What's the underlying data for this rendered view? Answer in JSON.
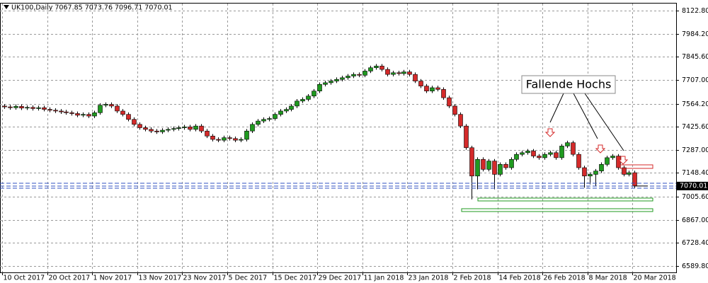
{
  "chart_data": {
    "type": "candlestick",
    "title": "UK100,Daily  7067.85 7073.76 7096.71 7070.01",
    "annotation": "Fallende Hochs",
    "current_price": {
      "value": 7070.01,
      "label": "7070.01"
    },
    "up_color": "#1f9a1f",
    "down_color": "#d42a2a",
    "grid": true,
    "ylim": [
      6551.6,
      8165.3
    ],
    "yticks": [
      {
        "value": 8122.8,
        "label": "8122.80"
      },
      {
        "value": 7984.2,
        "label": "7984.20"
      },
      {
        "value": 7845.6,
        "label": "7845.60"
      },
      {
        "value": 7707.0,
        "label": "7707.00"
      },
      {
        "value": 7564.2,
        "label": "7564.20"
      },
      {
        "value": 7425.6,
        "label": "7425.60"
      },
      {
        "value": 7287.0,
        "label": "7287.00"
      },
      {
        "value": 7148.4,
        "label": "7148.40"
      },
      {
        "value": 7005.6,
        "label": "7005.60"
      },
      {
        "value": 6867.0,
        "label": "6867.00"
      },
      {
        "value": 6728.4,
        "label": "6728.40"
      },
      {
        "value": 6589.8,
        "label": "6589.80"
      }
    ],
    "categories": [
      "10 Oct 2017",
      null,
      null,
      null,
      null,
      null,
      null,
      null,
      "20 Oct 2017",
      null,
      null,
      null,
      null,
      null,
      null,
      null,
      "1 Nov 2017",
      null,
      null,
      null,
      null,
      null,
      null,
      null,
      "13 Nov 2017",
      null,
      null,
      null,
      null,
      null,
      null,
      null,
      "23 Nov 2017",
      null,
      null,
      null,
      null,
      null,
      null,
      null,
      "5 Dec 2017",
      null,
      null,
      null,
      null,
      null,
      null,
      null,
      "15 Dec 2017",
      null,
      null,
      null,
      null,
      null,
      null,
      null,
      "29 Dec 2017",
      null,
      null,
      null,
      null,
      null,
      null,
      null,
      "11 Jan 2018",
      null,
      null,
      null,
      null,
      null,
      null,
      null,
      "23 Jan 2018",
      null,
      null,
      null,
      null,
      null,
      null,
      null,
      "2 Feb 2018",
      null,
      null,
      null,
      null,
      null,
      null,
      null,
      "14 Feb 2018",
      null,
      null,
      null,
      null,
      null,
      null,
      null,
      "26 Feb 2018",
      null,
      null,
      null,
      null,
      null,
      null,
      null,
      "8 Mar 2018",
      null,
      null,
      null,
      null,
      null,
      null,
      null,
      "20 Mar 2018"
    ],
    "candles": [
      [
        7550,
        7562,
        7533,
        7545
      ],
      [
        7545,
        7557,
        7528,
        7540
      ],
      [
        7540,
        7560,
        7528,
        7548
      ],
      [
        7548,
        7560,
        7526,
        7538
      ],
      [
        7538,
        7554,
        7526,
        7542
      ],
      [
        7542,
        7554,
        7523,
        7535
      ],
      [
        7535,
        7552,
        7523,
        7540
      ],
      [
        7540,
        7552,
        7518,
        7530
      ],
      [
        7530,
        7542,
        7513,
        7525
      ],
      [
        7525,
        7537,
        7508,
        7520
      ],
      [
        7520,
        7532,
        7503,
        7515
      ],
      [
        7515,
        7527,
        7498,
        7510
      ],
      [
        7510,
        7522,
        7493,
        7505
      ],
      [
        7505,
        7517,
        7483,
        7495
      ],
      [
        7495,
        7512,
        7483,
        7500
      ],
      [
        7500,
        7512,
        7478,
        7490
      ],
      [
        7490,
        7522,
        7478,
        7510
      ],
      [
        7510,
        7567,
        7498,
        7555
      ],
      [
        7555,
        7572,
        7543,
        7560
      ],
      [
        7560,
        7572,
        7538,
        7550
      ],
      [
        7550,
        7562,
        7508,
        7520
      ],
      [
        7520,
        7532,
        7488,
        7500
      ],
      [
        7500,
        7512,
        7458,
        7470
      ],
      [
        7470,
        7482,
        7428,
        7440
      ],
      [
        7440,
        7452,
        7408,
        7420
      ],
      [
        7420,
        7432,
        7398,
        7410
      ],
      [
        7410,
        7422,
        7388,
        7400
      ],
      [
        7400,
        7412,
        7383,
        7395
      ],
      [
        7395,
        7417,
        7383,
        7405
      ],
      [
        7405,
        7422,
        7393,
        7410
      ],
      [
        7410,
        7427,
        7398,
        7415
      ],
      [
        7415,
        7432,
        7403,
        7420
      ],
      [
        7420,
        7437,
        7408,
        7425
      ],
      [
        7425,
        7437,
        7398,
        7410
      ],
      [
        7410,
        7442,
        7398,
        7430
      ],
      [
        7430,
        7442,
        7388,
        7400
      ],
      [
        7400,
        7412,
        7358,
        7370
      ],
      [
        7370,
        7382,
        7338,
        7350
      ],
      [
        7350,
        7362,
        7333,
        7345
      ],
      [
        7345,
        7372,
        7333,
        7360
      ],
      [
        7360,
        7372,
        7343,
        7355
      ],
      [
        7355,
        7367,
        7333,
        7345
      ],
      [
        7345,
        7362,
        7333,
        7350
      ],
      [
        7350,
        7412,
        7338,
        7400
      ],
      [
        7400,
        7452,
        7388,
        7440
      ],
      [
        7440,
        7472,
        7428,
        7460
      ],
      [
        7460,
        7482,
        7448,
        7470
      ],
      [
        7470,
        7487,
        7458,
        7475
      ],
      [
        7475,
        7512,
        7463,
        7500
      ],
      [
        7500,
        7532,
        7488,
        7520
      ],
      [
        7520,
        7542,
        7508,
        7530
      ],
      [
        7530,
        7562,
        7518,
        7550
      ],
      [
        7550,
        7592,
        7538,
        7580
      ],
      [
        7580,
        7602,
        7568,
        7590
      ],
      [
        7590,
        7622,
        7578,
        7610
      ],
      [
        7610,
        7652,
        7598,
        7640
      ],
      [
        7640,
        7692,
        7628,
        7680
      ],
      [
        7680,
        7702,
        7668,
        7690
      ],
      [
        7690,
        7712,
        7678,
        7700
      ],
      [
        7700,
        7722,
        7688,
        7710
      ],
      [
        7710,
        7732,
        7698,
        7720
      ],
      [
        7720,
        7742,
        7708,
        7730
      ],
      [
        7730,
        7752,
        7718,
        7740
      ],
      [
        7740,
        7752,
        7723,
        7735
      ],
      [
        7735,
        7772,
        7723,
        7760
      ],
      [
        7760,
        7792,
        7748,
        7780
      ],
      [
        7780,
        7802,
        7768,
        7790
      ],
      [
        7790,
        7802,
        7758,
        7770
      ],
      [
        7770,
        7782,
        7728,
        7740
      ],
      [
        7740,
        7762,
        7728,
        7750
      ],
      [
        7750,
        7762,
        7733,
        7745
      ],
      [
        7745,
        7767,
        7733,
        7755
      ],
      [
        7755,
        7767,
        7728,
        7740
      ],
      [
        7740,
        7752,
        7688,
        7700
      ],
      [
        7700,
        7712,
        7658,
        7670
      ],
      [
        7670,
        7682,
        7628,
        7640
      ],
      [
        7640,
        7672,
        7628,
        7660
      ],
      [
        7660,
        7672,
        7638,
        7650
      ],
      [
        7650,
        7662,
        7588,
        7600
      ],
      [
        7600,
        7612,
        7538,
        7550
      ],
      [
        7550,
        7562,
        7488,
        7500
      ],
      [
        7500,
        7512,
        7418,
        7430
      ],
      [
        7430,
        7442,
        7288,
        7300
      ],
      [
        7300,
        7312,
        6990,
        7130
      ],
      [
        7130,
        7242,
        7050,
        7230
      ],
      [
        7230,
        7242,
        7158,
        7170
      ],
      [
        7170,
        7232,
        7158,
        7220
      ],
      [
        7220,
        7232,
        7050,
        7140
      ],
      [
        7140,
        7212,
        7128,
        7200
      ],
      [
        7200,
        7212,
        7168,
        7180
      ],
      [
        7180,
        7242,
        7168,
        7230
      ],
      [
        7230,
        7272,
        7218,
        7260
      ],
      [
        7260,
        7282,
        7248,
        7270
      ],
      [
        7270,
        7292,
        7258,
        7280
      ],
      [
        7280,
        7292,
        7238,
        7250
      ],
      [
        7250,
        7262,
        7228,
        7240
      ],
      [
        7240,
        7272,
        7228,
        7260
      ],
      [
        7260,
        7282,
        7248,
        7270
      ],
      [
        7270,
        7282,
        7228,
        7240
      ],
      [
        7240,
        7322,
        7228,
        7310
      ],
      [
        7310,
        7342,
        7298,
        7330
      ],
      [
        7330,
        7342,
        7248,
        7260
      ],
      [
        7260,
        7272,
        7168,
        7180
      ],
      [
        7180,
        7192,
        7060,
        7130
      ],
      [
        7130,
        7152,
        7080,
        7140
      ],
      [
        7140,
        7172,
        7070,
        7160
      ],
      [
        7160,
        7212,
        7148,
        7200
      ],
      [
        7200,
        7252,
        7188,
        7240
      ],
      [
        7240,
        7262,
        7228,
        7250
      ],
      [
        7250,
        7262,
        7168,
        7180
      ],
      [
        7180,
        7192,
        7128,
        7140
      ],
      [
        7140,
        7162,
        7128,
        7150
      ],
      [
        7150,
        7162,
        7058,
        7070
      ]
    ]
  }
}
